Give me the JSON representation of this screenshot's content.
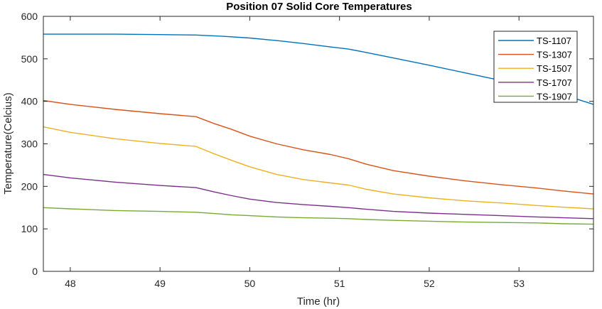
{
  "chart_data": {
    "type": "line",
    "title": "Position 07 Solid Core Temperatures",
    "xlabel": "Time (hr)",
    "ylabel": "Temperature(Celcius)",
    "xlim": [
      47.7,
      53.83
    ],
    "ylim": [
      0,
      600
    ],
    "xticks": [
      48,
      49,
      50,
      51,
      52,
      53
    ],
    "yticks": [
      0,
      100,
      200,
      300,
      400,
      500,
      600
    ],
    "grid": false,
    "legend_position": "top-right",
    "series": [
      {
        "name": "TS-1107",
        "color": "#0072BD",
        "x": [
          47.7,
          48.0,
          48.5,
          49.0,
          49.4,
          49.7,
          50.0,
          50.3,
          50.6,
          50.9,
          51.1,
          51.3,
          51.6,
          52.0,
          52.4,
          52.8,
          53.2,
          53.5,
          53.83
        ],
        "y": [
          558,
          558,
          558,
          557,
          556,
          553,
          549,
          543,
          536,
          528,
          523,
          515,
          502,
          485,
          467,
          449,
          433,
          415,
          393
        ]
      },
      {
        "name": "TS-1307",
        "color": "#D95319",
        "x": [
          47.7,
          48.0,
          48.5,
          49.0,
          49.4,
          49.6,
          49.8,
          50.0,
          50.3,
          50.6,
          50.9,
          51.1,
          51.3,
          51.6,
          52.0,
          52.4,
          52.8,
          53.2,
          53.5,
          53.83
        ],
        "y": [
          402,
          393,
          381,
          371,
          364,
          348,
          334,
          318,
          300,
          286,
          275,
          265,
          252,
          237,
          224,
          213,
          204,
          196,
          189,
          182
        ]
      },
      {
        "name": "TS-1507",
        "color": "#EDB120",
        "x": [
          47.7,
          48.0,
          48.5,
          49.0,
          49.4,
          49.6,
          49.8,
          50.0,
          50.3,
          50.6,
          50.9,
          51.1,
          51.3,
          51.6,
          52.0,
          52.4,
          52.8,
          53.2,
          53.5,
          53.83
        ],
        "y": [
          340,
          327,
          312,
          301,
          294,
          277,
          261,
          246,
          228,
          216,
          208,
          203,
          193,
          182,
          173,
          166,
          161,
          155,
          151,
          147
        ]
      },
      {
        "name": "TS-1707",
        "color": "#7E2F8E",
        "x": [
          47.7,
          48.0,
          48.5,
          49.0,
          49.4,
          49.6,
          49.8,
          50.0,
          50.3,
          50.6,
          50.9,
          51.1,
          51.3,
          51.6,
          52.0,
          52.4,
          52.8,
          53.2,
          53.5,
          53.83
        ],
        "y": [
          228,
          220,
          210,
          202,
          197,
          187,
          178,
          170,
          162,
          157,
          153,
          150,
          146,
          141,
          137,
          134,
          131,
          128,
          126,
          124
        ]
      },
      {
        "name": "TS-1907",
        "color": "#77AC30",
        "x": [
          47.7,
          48.0,
          48.5,
          49.0,
          49.4,
          49.6,
          49.8,
          50.0,
          50.3,
          50.6,
          50.9,
          51.1,
          51.3,
          51.6,
          52.0,
          52.4,
          52.8,
          53.2,
          53.5,
          53.83
        ],
        "y": [
          150,
          147,
          143,
          141,
          139,
          136,
          133,
          131,
          128,
          126,
          125,
          124,
          122,
          120,
          118,
          116,
          115,
          114,
          112,
          111
        ]
      }
    ]
  }
}
